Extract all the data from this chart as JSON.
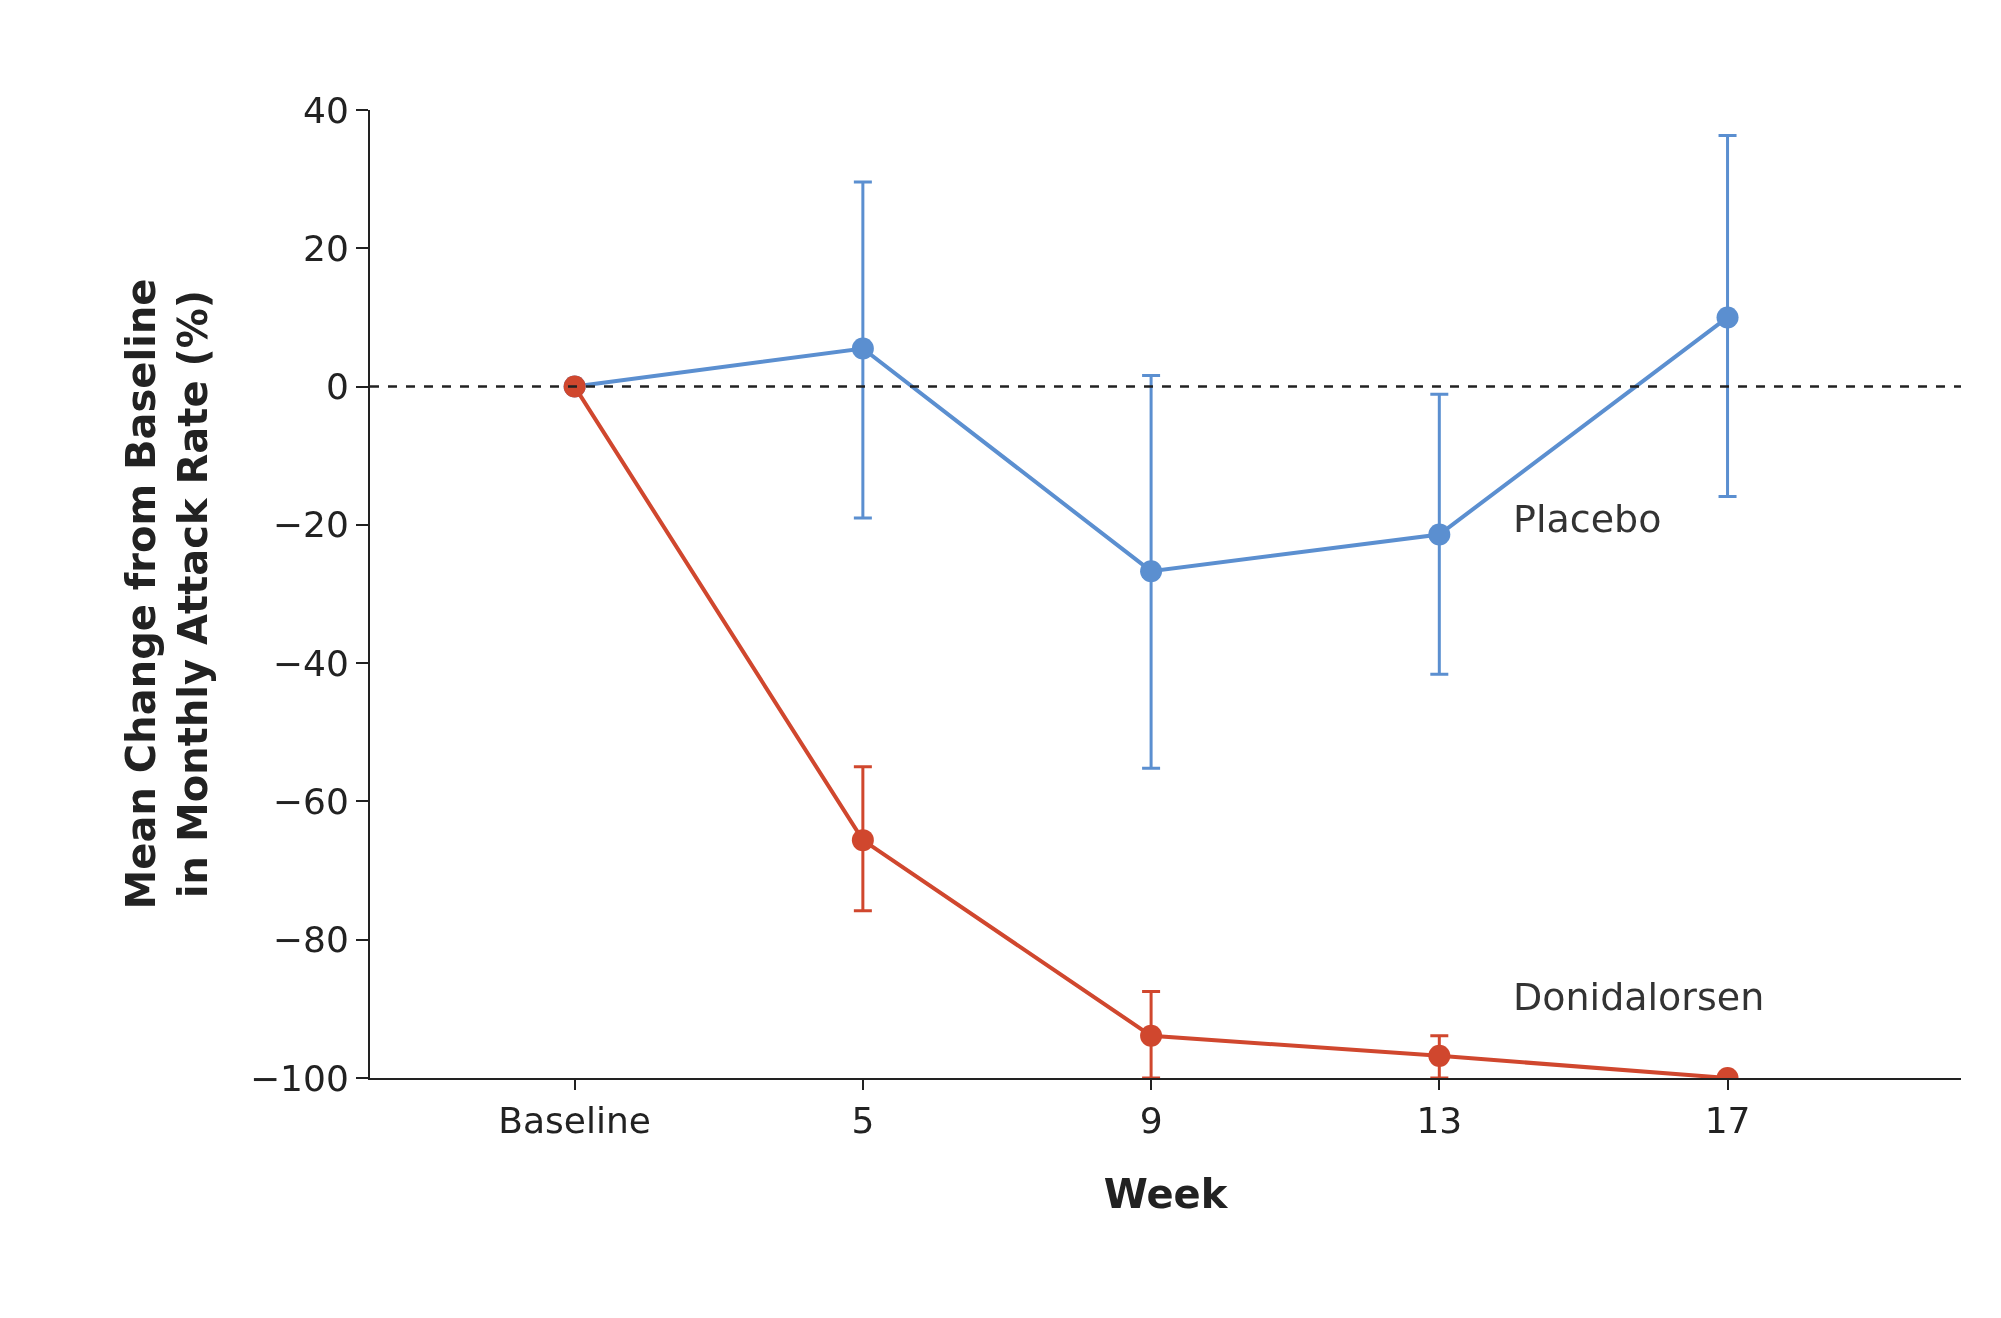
{
  "chart_data": {
    "type": "line",
    "xlabel": "Week",
    "ylabel": "Mean Change from Baseline in Monthly Attack Rate (%)",
    "categories": [
      "Baseline",
      "5",
      "9",
      "13",
      "17"
    ],
    "ylim": [
      -100,
      40
    ],
    "yticks": [
      {
        "value": -100,
        "label": "−100"
      },
      {
        "value": -80,
        "label": "−80"
      },
      {
        "value": -60,
        "label": "−60"
      },
      {
        "value": -40,
        "label": "−40"
      },
      {
        "value": -20,
        "label": "−20"
      },
      0,
      20,
      40
    ],
    "grid": false,
    "legend": false,
    "marker": "circle",
    "line_style": "solid",
    "series": [
      {
        "name": "Placebo",
        "color": "#5b8fd0",
        "values": [
          0,
          5.5,
          -26.7,
          -21.4,
          10
        ],
        "errors": [
          null,
          [
            -19,
            29.6
          ],
          [
            -55.2,
            1.6
          ],
          [
            -41.6,
            -1.1
          ],
          [
            -15.9,
            36.3
          ]
        ]
      },
      {
        "name": "Donidalorsen",
        "color": "#d0472e",
        "values": [
          0,
          -65.6,
          -93.9,
          -96.8,
          -100
        ],
        "errors": [
          null,
          [
            -75.8,
            -55
          ],
          [
            -100,
            -87.5
          ],
          [
            -100,
            -93.9
          ],
          null
        ]
      }
    ],
    "ref_lines": [
      {
        "axis": "y",
        "value": 0,
        "color": "#222222",
        "line_style": "dashed"
      }
    ]
  }
}
